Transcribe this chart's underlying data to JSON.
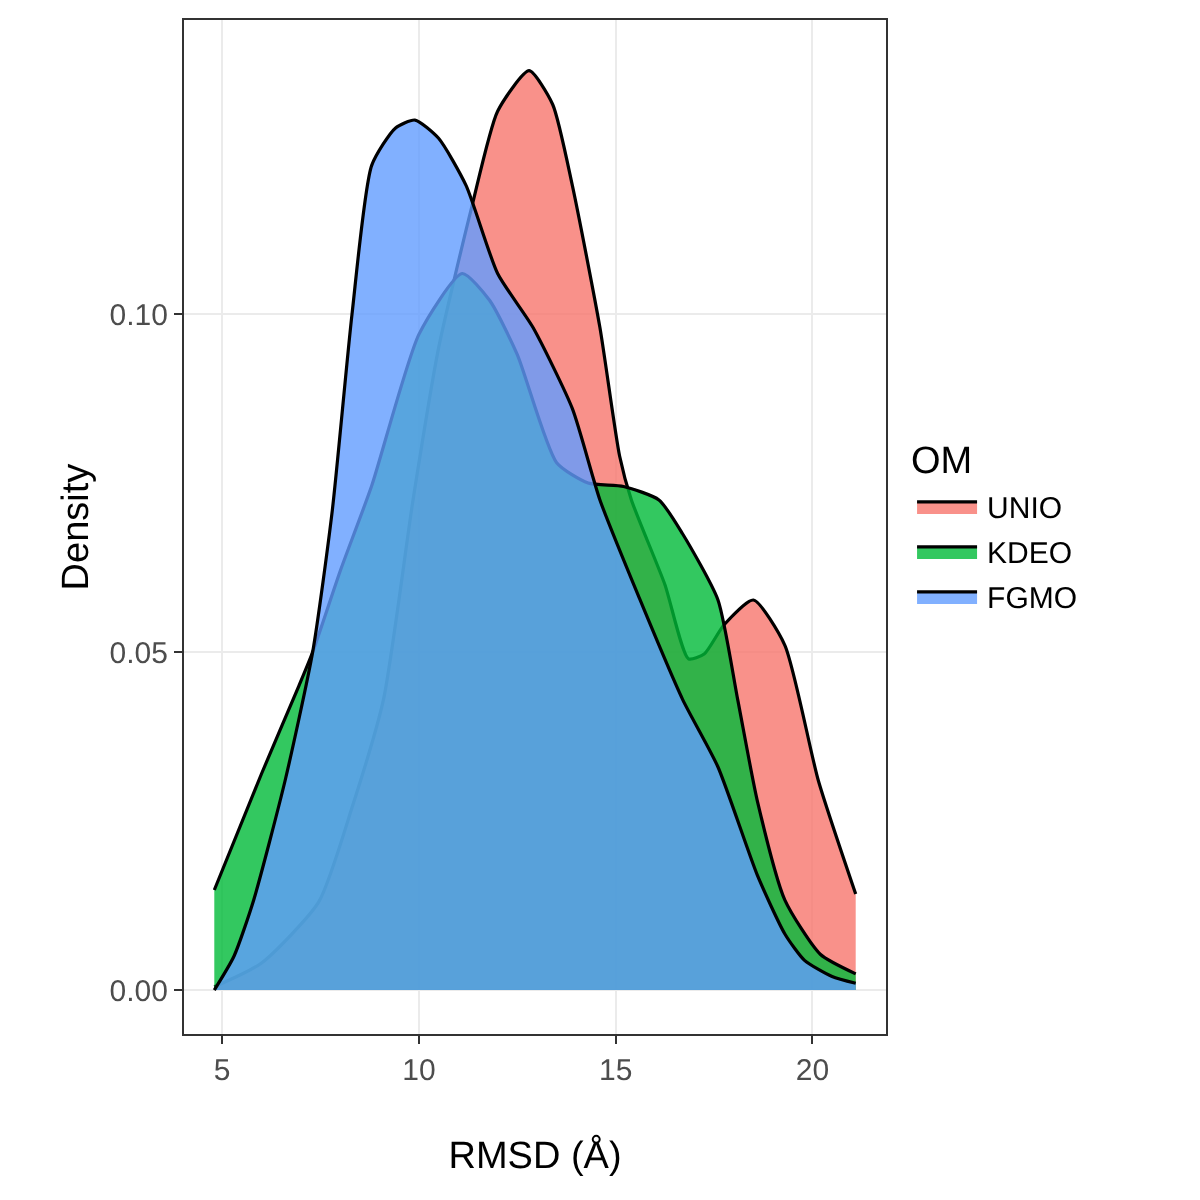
{
  "chart_data": {
    "type": "area",
    "xlabel": "RMSD (Å)",
    "ylabel": "Density",
    "legend_title": "OM",
    "legend": "right",
    "grid": true,
    "xlim": [
      4.03,
      21.87
    ],
    "ylim": [
      -0.0065,
      0.1435
    ],
    "xticks": [
      5,
      10,
      15,
      20
    ],
    "yticks": [
      {
        "value": 0,
        "label": "0.00"
      },
      {
        "value": 0.05,
        "label": "0.05"
      },
      {
        "value": 0.1,
        "label": "0.10"
      }
    ],
    "series": [
      {
        "name": "UNIO",
        "color": "#f8766d",
        "x": [
          4.8,
          6.0,
          7.45,
          8.3,
          9.1,
          9.85,
          10.5,
          11.35,
          12.0,
          12.8,
          13.4,
          13.9,
          14.6,
          15.1,
          15.4,
          16.25,
          16.85,
          17.25,
          17.75,
          18.5,
          19.3,
          20.15,
          21.1
        ],
        "values": [
          0.0005,
          0.004,
          0.013,
          0.027,
          0.043,
          0.0725,
          0.095,
          0.116,
          0.13,
          0.136,
          0.131,
          0.119,
          0.098,
          0.079,
          0.0725,
          0.06,
          0.049,
          0.0497,
          0.054,
          0.0577,
          0.051,
          0.031,
          0.0142
        ]
      },
      {
        "name": "KDEO",
        "color": "#00ba38",
        "x": [
          4.8,
          6.0,
          6.95,
          7.3,
          8.0,
          8.8,
          10.0,
          11.1,
          11.8,
          12.5,
          13.5,
          14.3,
          15.2,
          16.1,
          16.7,
          17.6,
          18.1,
          18.6,
          19.3,
          20.2,
          21.1
        ],
        "values": [
          0.0148,
          0.032,
          0.045,
          0.05,
          0.062,
          0.0746,
          0.097,
          0.106,
          0.102,
          0.094,
          0.078,
          0.075,
          0.0745,
          0.0725,
          0.0675,
          0.0577,
          0.043,
          0.028,
          0.0133,
          0.0053,
          0.0024
        ]
      },
      {
        "name": "FGMO",
        "color": "#619cff",
        "x": [
          4.8,
          5.3,
          5.8,
          6.6,
          7.3,
          7.8,
          8.3,
          8.8,
          9.4,
          9.9,
          10.5,
          11.2,
          12.0,
          12.9,
          13.9,
          14.6,
          15.6,
          16.7,
          17.6,
          18.6,
          19.3,
          19.8,
          20.5,
          21.1
        ],
        "values": [
          0,
          0.005,
          0.0133,
          0.031,
          0.05,
          0.071,
          0.1,
          0.122,
          0.1275,
          0.1287,
          0.126,
          0.119,
          0.106,
          0.098,
          0.086,
          0.0725,
          0.058,
          0.043,
          0.033,
          0.017,
          0.0083,
          0.0044,
          0.002,
          0.001
        ]
      }
    ]
  }
}
